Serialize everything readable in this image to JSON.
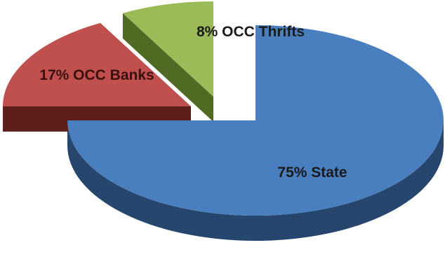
{
  "chart_data": {
    "type": "pie",
    "style": "3d-exploded",
    "title": "",
    "legend": "none",
    "slices": [
      {
        "label": "75% State",
        "percent": 75,
        "color": "#4a7fbf",
        "side_color": "#27466d",
        "label_color": "#1a1a1a"
      },
      {
        "label": "17% OCC Banks",
        "percent": 17,
        "color": "#c0504d",
        "side_color": "#5e1e1c",
        "label_color": "#3a1010"
      },
      {
        "label": "8% OCC Thrifts",
        "percent": 8,
        "color": "#9bbb59",
        "side_color": "#4f6a22",
        "label_color": "#1a1a1a"
      }
    ]
  }
}
